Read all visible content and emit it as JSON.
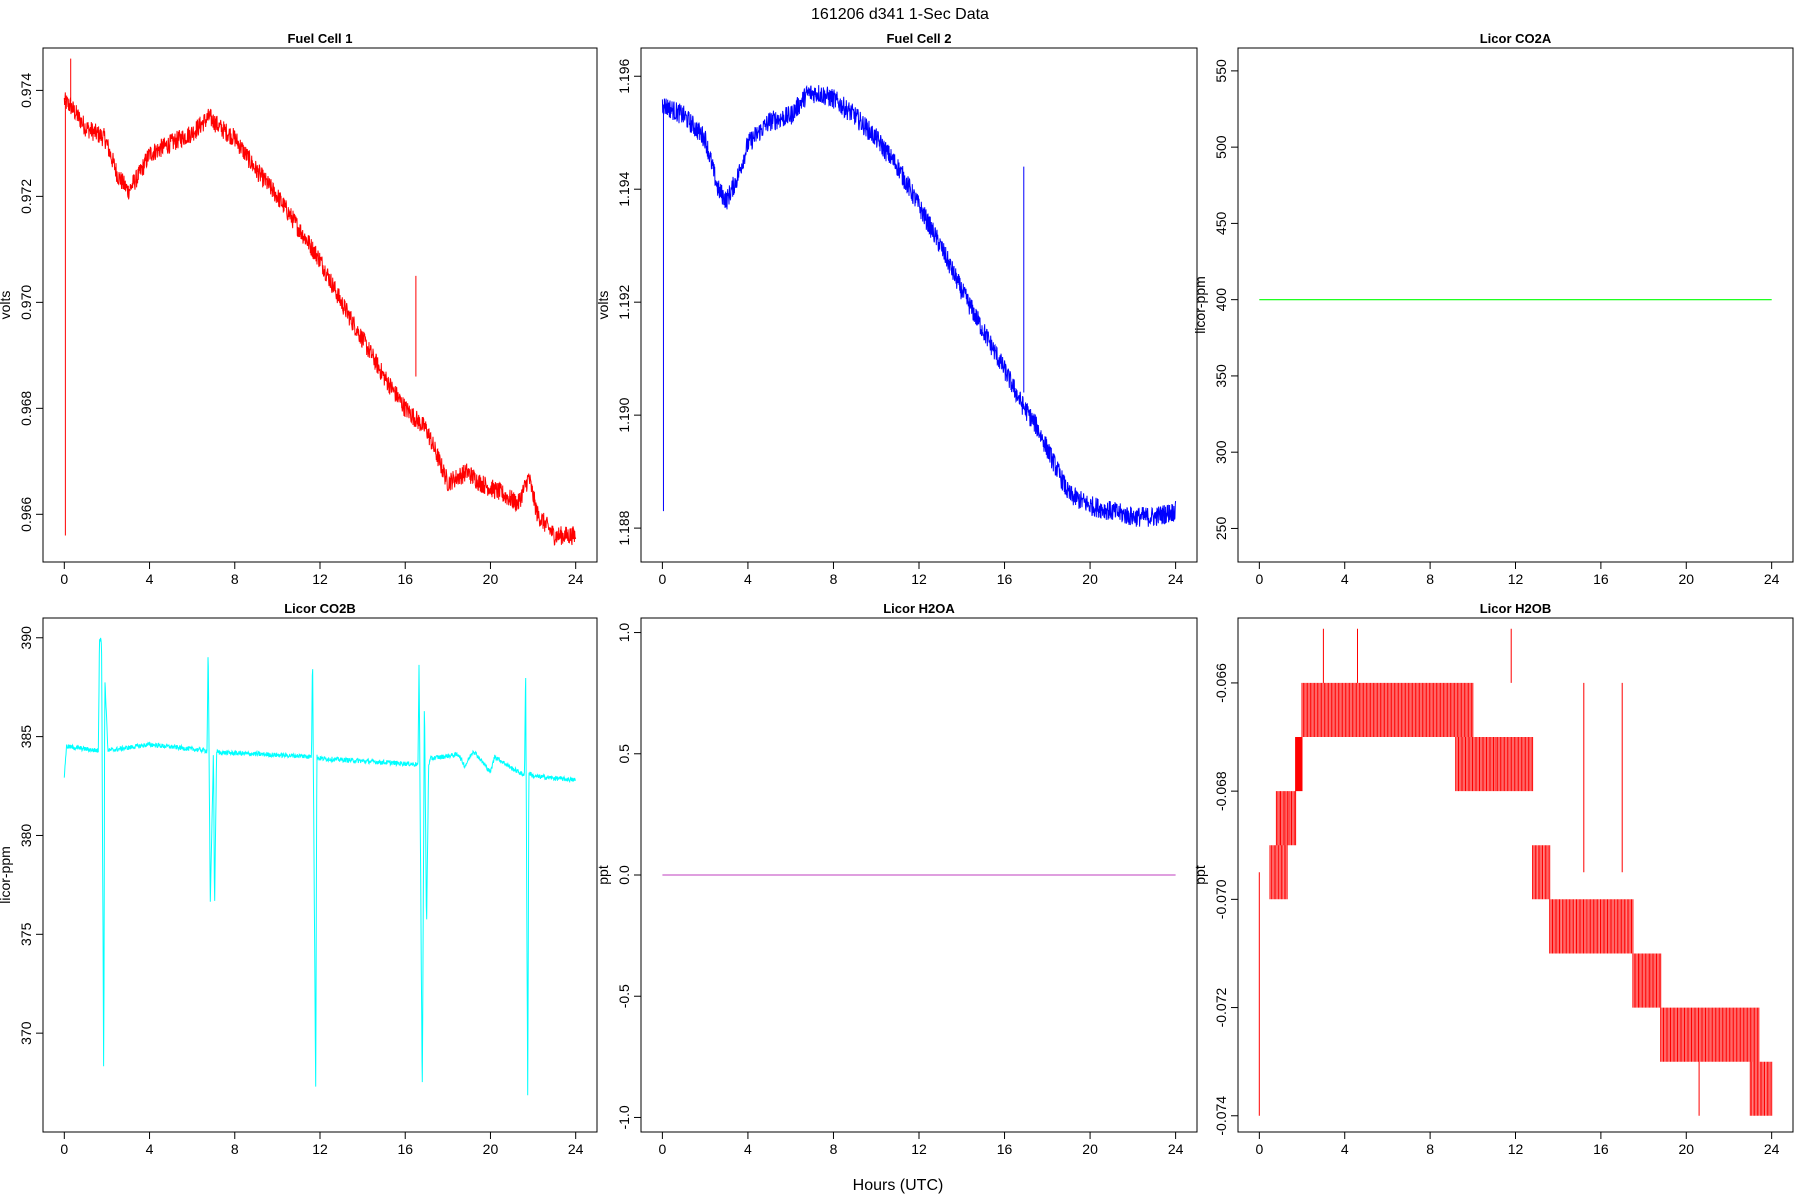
{
  "figure": {
    "title": "161206   d341   1-Sec Data",
    "xlabel": "Hours (UTC)"
  },
  "chart_data": [
    {
      "id": "fc1",
      "type": "line",
      "title": "Fuel Cell 1",
      "ylabel": "volts",
      "color": "#ff0000",
      "xlim": [
        -1,
        25
      ],
      "ylim": [
        0.9651,
        0.9748
      ],
      "xticks": [
        0,
        4,
        8,
        12,
        16,
        20,
        24
      ],
      "yticks": [
        0.966,
        0.968,
        0.97,
        0.972,
        0.974
      ],
      "ytick_labels": [
        "0.966",
        "0.968",
        "0.970",
        "0.972",
        "0.974"
      ],
      "noise": 0.00018,
      "x": [
        0,
        0.3,
        1,
        1.9,
        2.5,
        3,
        3.5,
        4,
        5,
        6,
        6.8,
        7.3,
        8,
        9,
        10,
        11,
        12,
        13,
        14,
        15,
        16,
        17,
        18,
        18.9,
        19.5,
        20.5,
        21.3,
        21.8,
        22.2,
        23,
        24
      ],
      "y": [
        0.9738,
        0.9737,
        0.9733,
        0.9731,
        0.9724,
        0.9721,
        0.9724,
        0.9728,
        0.973,
        0.9732,
        0.9735,
        0.9733,
        0.9731,
        0.9725,
        0.972,
        0.9714,
        0.9708,
        0.97,
        0.9693,
        0.9686,
        0.968,
        0.9676,
        0.9666,
        0.9668,
        0.9666,
        0.9664,
        0.9662,
        0.9667,
        0.966,
        0.9656,
        0.9656
      ],
      "spikes": [
        {
          "x": 0.05,
          "y0": 0.9738,
          "y1": 0.9656
        },
        {
          "x": 0.3,
          "y0": 0.9738,
          "y1": 0.9746
        },
        {
          "x": 16.5,
          "y0": 0.9686,
          "y1": 0.9705
        }
      ]
    },
    {
      "id": "fc2",
      "type": "line",
      "title": "Fuel Cell 2",
      "ylabel": "volts",
      "color": "#0000ff",
      "xlim": [
        -1,
        25
      ],
      "ylim": [
        1.1874,
        1.1965
      ],
      "xticks": [
        0,
        4,
        8,
        12,
        16,
        20,
        24
      ],
      "yticks": [
        1.188,
        1.19,
        1.192,
        1.194,
        1.196
      ],
      "ytick_labels": [
        "1.188",
        "1.190",
        "1.192",
        "1.194",
        "1.196"
      ],
      "noise": 0.00018,
      "x": [
        0,
        0.5,
        1,
        2,
        2.6,
        3,
        3.5,
        4,
        5,
        6,
        6.8,
        7.3,
        8,
        9,
        10,
        11,
        12,
        13,
        14,
        15,
        16,
        16.8,
        17.5,
        18.5,
        19,
        19.5,
        20,
        21,
        22,
        23,
        24
      ],
      "y": [
        1.1955,
        1.1954,
        1.1953,
        1.1949,
        1.194,
        1.1938,
        1.1942,
        1.1948,
        1.1952,
        1.1953,
        1.1957,
        1.1957,
        1.1956,
        1.1953,
        1.1949,
        1.1944,
        1.1937,
        1.193,
        1.1922,
        1.1915,
        1.1908,
        1.1902,
        1.1898,
        1.189,
        1.1886,
        1.1885,
        1.1884,
        1.1883,
        1.1882,
        1.1882,
        1.1883
      ],
      "spikes": [
        {
          "x": 0.05,
          "y0": 1.1955,
          "y1": 1.1883
        },
        {
          "x": 16.9,
          "y0": 1.1904,
          "y1": 1.1944
        }
      ]
    },
    {
      "id": "co2a",
      "type": "line",
      "title": "Licor CO2A",
      "ylabel": "licor-ppm",
      "color": "#00ff00",
      "xlim": [
        -1,
        25
      ],
      "ylim": [
        228,
        565
      ],
      "xticks": [
        0,
        4,
        8,
        12,
        16,
        20,
        24
      ],
      "yticks": [
        250,
        300,
        350,
        400,
        450,
        500,
        550
      ],
      "ytick_labels": [
        "250",
        "300",
        "350",
        "400",
        "450",
        "500",
        "550"
      ],
      "noise": 0,
      "x": [
        0,
        24
      ],
      "y": [
        400,
        400
      ],
      "spikes": []
    },
    {
      "id": "co2b",
      "type": "line",
      "title": "Licor CO2B",
      "ylabel": "licor-ppm",
      "color": "#00ffff",
      "xlim": [
        -1,
        25
      ],
      "ylim": [
        365,
        391
      ],
      "xticks": [
        0,
        4,
        8,
        12,
        16,
        20,
        24
      ],
      "yticks": [
        370,
        375,
        380,
        385,
        390
      ],
      "ytick_labels": [
        "370",
        "375",
        "380",
        "385",
        "390"
      ],
      "noise": 0.12,
      "x": [
        0,
        0.1,
        1.5,
        1.6,
        1.65,
        1.75,
        1.85,
        1.9,
        2.05,
        2.1,
        4,
        6.6,
        6.7,
        6.75,
        6.85,
        7.0,
        7.05,
        7.15,
        7.2,
        11.5,
        11.6,
        11.65,
        11.8,
        11.85,
        11.95,
        16.5,
        16.6,
        16.65,
        16.8,
        16.9,
        17.0,
        17.1,
        17.2,
        18.5,
        18.8,
        19.2,
        20,
        20.2,
        21,
        21.5,
        21.6,
        21.65,
        21.75,
        21.8,
        21.9,
        22,
        24
      ],
      "y": [
        383.0,
        384.5,
        384.3,
        384.3,
        390.0,
        389.8,
        367.5,
        388.0,
        384.3,
        384.3,
        384.6,
        384.3,
        384.3,
        389.8,
        376.5,
        384.3,
        376.3,
        384.3,
        384.2,
        384.0,
        384.0,
        389.2,
        366.9,
        384.0,
        383.9,
        383.6,
        383.6,
        388.9,
        366.8,
        387.0,
        375.3,
        383.6,
        383.9,
        384.1,
        383.5,
        384.3,
        383.2,
        384.0,
        383.4,
        383.1,
        383.1,
        388.6,
        366.3,
        383.2,
        383.1,
        383.0,
        382.8
      ],
      "spikes": []
    },
    {
      "id": "h2oa",
      "type": "line",
      "title": "Licor H2OA",
      "ylabel": "ppt",
      "color": "#cc66cc",
      "xlim": [
        -1,
        25
      ],
      "ylim": [
        -1.06,
        1.06
      ],
      "xticks": [
        0,
        4,
        8,
        12,
        16,
        20,
        24
      ],
      "yticks": [
        -1.0,
        -0.5,
        0.0,
        0.5,
        1.0
      ],
      "ytick_labels": [
        "-1.0",
        "-0.5",
        "0.0",
        "0.5",
        "1.0"
      ],
      "noise": 0,
      "x": [
        0,
        24
      ],
      "y": [
        0,
        0
      ],
      "spikes": []
    },
    {
      "id": "h2ob",
      "type": "step",
      "title": "Licor H2OB",
      "ylabel": "ppt",
      "color": "#ff0000",
      "xlim": [
        -1,
        25
      ],
      "ylim": [
        -0.0743,
        -0.0648
      ],
      "xticks": [
        0,
        4,
        8,
        12,
        16,
        20,
        24
      ],
      "yticks": [
        -0.074,
        -0.072,
        -0.07,
        -0.068,
        -0.066
      ],
      "ytick_labels": [
        "-0.074",
        "-0.072",
        "-0.070",
        "-0.068",
        "-0.066"
      ],
      "noise": 0,
      "bands": [
        {
          "x0": 0.5,
          "x1": 1.3,
          "lo": -0.07,
          "hi": -0.069
        },
        {
          "x0": 0.8,
          "x1": 1.7,
          "lo": -0.069,
          "hi": -0.068
        },
        {
          "x0": 1.7,
          "x1": 2.0,
          "lo": -0.068,
          "hi": -0.067
        },
        {
          "x0": 2.0,
          "x1": 10.0,
          "lo": -0.067,
          "hi": -0.066
        },
        {
          "x0": 9.2,
          "x1": 12.8,
          "lo": -0.068,
          "hi": -0.067
        },
        {
          "x0": 12.8,
          "x1": 13.6,
          "lo": -0.07,
          "hi": -0.069
        },
        {
          "x0": 13.6,
          "x1": 17.5,
          "lo": -0.071,
          "hi": -0.07
        },
        {
          "x0": 17.5,
          "x1": 18.8,
          "lo": -0.072,
          "hi": -0.071
        },
        {
          "x0": 18.8,
          "x1": 23.4,
          "lo": -0.073,
          "hi": -0.072
        },
        {
          "x0": 23.0,
          "x1": 24.0,
          "lo": -0.074,
          "hi": -0.073
        }
      ]
    }
  ]
}
